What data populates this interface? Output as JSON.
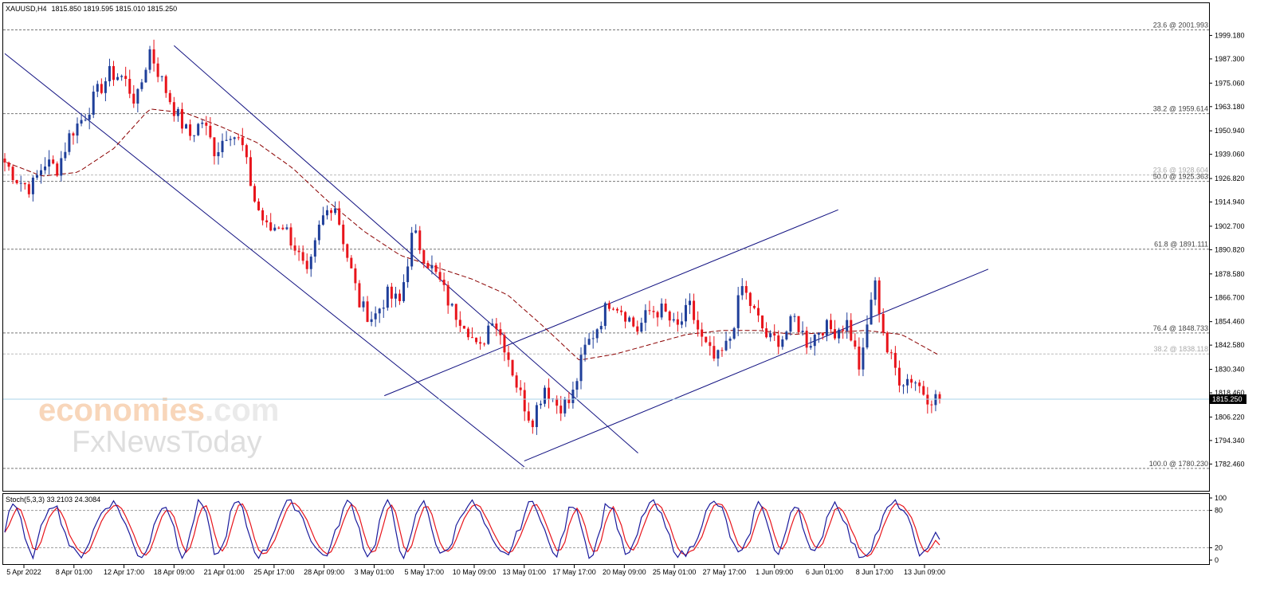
{
  "header": {
    "symbol_tf": "XAUUSD,H4",
    "ohlc": "1815.850 1819.595 1815.010 1815.250"
  },
  "watermark": {
    "brand_colored": "economies",
    "brand_suffix": ".com",
    "brand2": "FxNewsToday"
  },
  "stoch_label": "Stoch(5,3,3) 33.2103 24.3084",
  "current_price_label": "1815.250",
  "colors": {
    "bull": "#1f3f9a",
    "bear": "#e8141b",
    "ma": "#8b0000",
    "channel": "#101080",
    "stoch_main": "#1a1a9c",
    "stoch_signal": "#e8141b",
    "price_line": "#a9d3ea"
  },
  "chart_data": {
    "type": "candlestick",
    "price_axis": {
      "ylim": [
        1781.0,
        2005.0
      ],
      "ticks": [
        "1999.180",
        "1987.300",
        "1975.060",
        "1963.180",
        "1950.940",
        "1939.060",
        "1926.820",
        "1914.940",
        "1902.700",
        "1890.820",
        "1878.580",
        "1866.700",
        "1854.460",
        "1842.580",
        "1830.340",
        "1818.460",
        "1806.220",
        "1794.340",
        "1782.460"
      ]
    },
    "time_axis": {
      "labels": [
        "5 Apr 2022",
        "8 Apr 01:00",
        "12 Apr 17:00",
        "18 Apr 09:00",
        "21 Apr 01:00",
        "25 Apr 17:00",
        "28 Apr 09:00",
        "3 May 01:00",
        "5 May 17:00",
        "10 May 09:00",
        "13 May 01:00",
        "17 May 17:00",
        "20 May 09:00",
        "25 May 01:00",
        "27 May 17:00",
        "1 Jun 09:00",
        "6 Jun 01:00",
        "8 Jun 17:00",
        "13 Jun 09:00"
      ]
    },
    "fib_levels": [
      {
        "label": "23.6 @ 2001.993",
        "value": 2001.993,
        "muted": false
      },
      {
        "label": "38.2 @ 1959.614",
        "value": 1959.614,
        "muted": false
      },
      {
        "label": "23.6 @ 1928.604",
        "value": 1928.604,
        "muted": true
      },
      {
        "label": "50.0 @ 1925.363",
        "value": 1925.363,
        "muted": false
      },
      {
        "label": "61.8 @ 1891.111",
        "value": 1891.111,
        "muted": false
      },
      {
        "label": "76.4 @ 1848.733",
        "value": 1848.733,
        "muted": false
      },
      {
        "label": "38.2 @ 1838.118",
        "value": 1838.118,
        "muted": true
      },
      {
        "label": "100.0 @ 1780.230",
        "value": 1780.23,
        "muted": false
      }
    ],
    "current_price": 1815.25,
    "anchors": [
      1935,
      1926,
      1922,
      1935,
      1932,
      1950,
      1958,
      1970,
      1980,
      1978,
      1965,
      1992,
      1975,
      1960,
      1948,
      1956,
      1940,
      1952,
      1944,
      1915,
      1900,
      1905,
      1893,
      1876,
      1905,
      1916,
      1888,
      1862,
      1856,
      1868,
      1864,
      1900,
      1886,
      1875,
      1860,
      1854,
      1838,
      1858,
      1842,
      1820,
      1804,
      1822,
      1812,
      1814,
      1840,
      1852,
      1866,
      1860,
      1850,
      1860,
      1860,
      1850,
      1862,
      1844,
      1834,
      1844,
      1872,
      1858,
      1845,
      1846,
      1856,
      1843,
      1852,
      1850,
      1854,
      1829,
      1876,
      1840,
      1825,
      1826,
      1817,
      1815
    ],
    "ma_anchors": [
      1935,
      1928,
      1930,
      1942,
      1962,
      1960,
      1953,
      1945,
      1932,
      1915,
      1900,
      1888,
      1882,
      1876,
      1868,
      1852,
      1835,
      1838,
      1843,
      1848,
      1850,
      1850,
      1848,
      1849,
      1850,
      1848,
      1838
    ],
    "channels": [
      {
        "from": [
          "start",
          1990
        ],
        "to": [
          "13 May 01:00",
          1781
        ]
      },
      {
        "from": [
          "18 Apr 09:00",
          1994
        ],
        "to": [
          "17 May 17:00+",
          1788
        ]
      },
      {
        "from": [
          "5 May 17:00-",
          1817
        ],
        "to": [
          "1 Jun 09:00+",
          1911
        ]
      },
      {
        "from": [
          "13 May 01:00",
          1784
        ],
        "to": [
          "13 Jun 09:00+",
          1881
        ]
      }
    ],
    "stoch": {
      "ylim": [
        0,
        100
      ],
      "ticks": [
        "100",
        "80",
        "20",
        "0"
      ],
      "levels": [
        80,
        20
      ],
      "main": 33.2103,
      "signal": 24.3084
    }
  }
}
